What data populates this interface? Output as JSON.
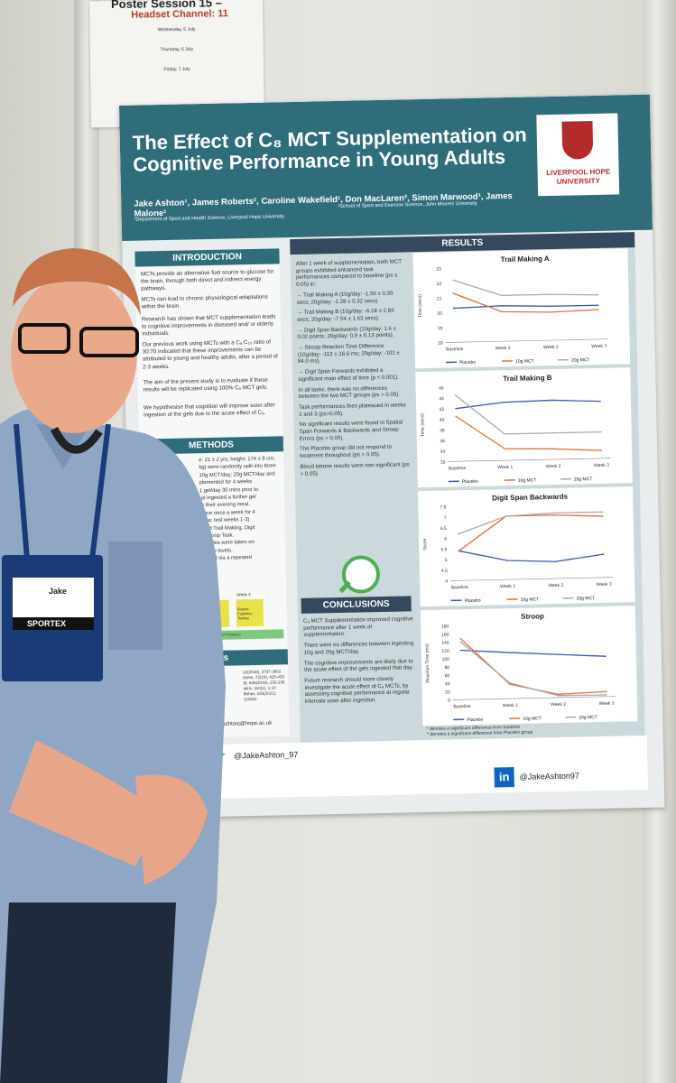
{
  "session_sheet": {
    "title": "Poster Session 15 –",
    "channel": "Headset Channel: 11",
    "days": [
      "Wednesday, 5 July",
      "Thursday, 6 July",
      "Friday, 7 July"
    ]
  },
  "poster": {
    "title_line1": "The Effect of C₈ MCT Supplementation on",
    "title_line2": "Cognitive Performance in Young Adults",
    "authors": "Jake Ashton¹, James Roberts², Caroline Wakefield¹, Don MacLaren², Simon Marwood¹, James Malone¹",
    "affiliation1": "¹Department of Sport and Health Science, Liverpool Hope University",
    "affiliation2": "²School of Sport and Exercise Science, John Moores University",
    "logo_line1": "LIVERPOOL HOPE",
    "logo_line2": "UNIVERSITY",
    "introduction": {
      "heading": "INTRODUCTION",
      "paragraphs": [
        "MCTs provide an alternative fuel source to glucose for the brain, through both direct and indirect energy pathways.",
        "MCTs can lead to chronic physiological adaptations within the brain.",
        "Research has shown that MCT supplementation leads to cognitive improvements in diseased and/ or elderly individuals.",
        "Our previous work using MCTs with a C₈:C₁₀ ratio of 30:70 indicated that these improvements can be attributed to young and healthy adults, after a period of 2-3 weeks.",
        "The aim of the present study is to evaluate if these results will be replicated using 100% C₈ MCT gels.",
        "We hypothesise that cognition will improve soon after ingestion of the gels due to the acute effect of C₈."
      ]
    },
    "methods": {
      "heading": "METHODS",
      "fragments": [
        "e: 21 ± 2 yrs; height: 174 ± 9 cm;",
        "kg) were randomly split into three",
        "10g MCT/day; 20g MCT/day and",
        "plemented for 4 weeks",
        "1 gel/day 30 mins prior to",
        "up ingested a further gel",
        "to their evening meal.",
        "place once a week for 4",
        "eline; test weeks 1-3)",
        "uded Trail Making, Digit",
        "e Stroop Task.",
        "samples were taken on",
        "ketone levels.",
        "formed via a repeated"
      ],
      "table": [
        "Week 2",
        "Week 3",
        "Repeat Cognitive Testing",
        "Repeat Cognitive Testing",
        "ication of MCT/Placebo"
      ]
    },
    "references": {
      "heading": "ences",
      "lines": [
        "22(2016), 3797-3802",
        "ithem, 72(10), 425-433",
        "8), 690(2019), 232-236",
        "iatric, 110(1), 1-10",
        "Behav, 225(2021), 113252"
      ],
      "email": "ashtonj@hope.ac.uk"
    },
    "results": {
      "heading": "RESULTS",
      "paragraphs": [
        "After 1 week of supplementation, both MCT groups exhibited enhanced task performances compared to baseline (ps ≤ 0.05) in:",
        "→ Trail Making A (10g/day: -1.56 ± 0.39 secs; 20g/day: -1.28 ± 0.32 secs)",
        "→ Trail Making B (10g/day: -6.18 ± 2.83 secs; 20g/day: -7.54 ± 1.63 secs).",
        "→ Digit Span Backwards (10g/day: 1.6 ± 0.02 points; 20g/day: 0.9 ± 0.13 points).",
        "→ Stroop Reaction Time Difference (10g/day: -112 ± 16.6 ms; 20g/day: -101 ± 84.0 ms).",
        "→ Digit Span Forwards exhibited a significant main effect of time (p < 0.001).",
        "In all tasks, there was no differences between the two MCT groups (ps > 0.05).",
        "Task performances then plateaued in weeks 2 and 3 (ps>0.05).",
        "No significant results were found in Spatial Span Forwards & Backwards and Stroop Errors (ps > 0.05).",
        "The Placebo group did not respond to treatment throughout (ps > 0.05).",
        "Blood ketone results were non-significant (ps > 0.05)."
      ]
    },
    "conclusions": {
      "heading": "CONCLUSIONS",
      "paragraphs": [
        "C₈ MCT Supplementation improved cognitive performance after 1 week of supplementation.",
        "There were no differences between ingesting 10g and 20g MCT/day.",
        "The cognitive improvements are likely due to the acute effect of the gels ingested that day.",
        "Future research should more closely investigate the acute effect of C₈ MCTs, by assessing cognitive performance at regular intervals soon after ingestion."
      ]
    },
    "footnotes": [
      "* denotes a significant difference from baseline",
      "^ denotes a significant difference from Placebo group"
    ],
    "twitter": "@JakeAshton_97",
    "linkedin": "@JakeAshton97",
    "linkedin_glyph": "in",
    "twitter_glyph": "🐦",
    "badge": {
      "name": "Jake",
      "brand": "SPORTEX"
    }
  },
  "chart_data": [
    {
      "type": "line",
      "title": "Trail Making A",
      "xlabel": "",
      "ylabel": "Time (secs)",
      "categories": [
        "Baseline",
        "Week 1",
        "Week 2",
        "Week 3"
      ],
      "ylim": [
        18,
        23
      ],
      "yticks": [
        18,
        19,
        20,
        21,
        22,
        23
      ],
      "series": [
        {
          "name": "Placebo",
          "color": "#3b5ba5",
          "values": [
            20.3,
            20.4,
            20.3,
            20.3
          ]
        },
        {
          "name": "10g MCT",
          "color": "#d9733b",
          "values": [
            21.3,
            20.0,
            19.9,
            20.0
          ]
        },
        {
          "name": "20g MCT",
          "color": "#a9a9a9",
          "values": [
            22.2,
            21.1,
            21.1,
            21.0
          ]
        }
      ]
    },
    {
      "type": "line",
      "title": "Trail Making B",
      "xlabel": "",
      "ylabel": "Time (secs)",
      "categories": [
        "Baseline",
        "Week 1",
        "Week 2",
        "Week 3"
      ],
      "ylim": [
        32,
        46
      ],
      "yticks": [
        32,
        34,
        36,
        38,
        40,
        42,
        44,
        46
      ],
      "series": [
        {
          "name": "Placebo",
          "color": "#3b5ba5",
          "values": [
            42.0,
            43.0,
            43.2,
            42.8
          ]
        },
        {
          "name": "10g MCT",
          "color": "#d9733b",
          "values": [
            40.5,
            34.2,
            34.0,
            33.5
          ]
        },
        {
          "name": "20g MCT",
          "color": "#a9a9a9",
          "values": [
            44.5,
            37.0,
            37.0,
            37.0
          ]
        }
      ]
    },
    {
      "type": "line",
      "title": "Digit Span Backwards",
      "xlabel": "",
      "ylabel": "Score",
      "categories": [
        "Baseline",
        "Week 1",
        "Week 2",
        "Week 3"
      ],
      "ylim": [
        4,
        7.5
      ],
      "yticks": [
        4,
        4.5,
        5,
        5.5,
        6,
        6.5,
        7,
        7.5
      ],
      "series": [
        {
          "name": "Placebo",
          "color": "#3b5ba5",
          "values": [
            5.4,
            4.9,
            4.8,
            5.1
          ]
        },
        {
          "name": "10g MCT",
          "color": "#d9733b",
          "values": [
            5.4,
            7.0,
            7.0,
            6.9
          ]
        },
        {
          "name": "20g MCT",
          "color": "#a9a9a9",
          "values": [
            6.2,
            7.0,
            7.1,
            7.1
          ]
        }
      ]
    },
    {
      "type": "line",
      "title": "Stroop",
      "xlabel": "",
      "ylabel": "Reaction Time (ms)",
      "categories": [
        "Baseline",
        "Week 1",
        "Week 2",
        "Week 3"
      ],
      "ylim": [
        0,
        180
      ],
      "yticks": [
        0,
        20,
        40,
        60,
        80,
        100,
        120,
        140,
        160,
        180
      ],
      "series": [
        {
          "name": "Placebo",
          "color": "#3b5ba5",
          "values": [
            120,
            112,
            105,
            98
          ]
        },
        {
          "name": "10g MCT",
          "color": "#d9733b",
          "values": [
            148,
            35,
            8,
            12
          ]
        },
        {
          "name": "20g MCT",
          "color": "#a9a9a9",
          "values": [
            140,
            38,
            5,
            4
          ]
        }
      ]
    }
  ],
  "colors": {
    "poster_header": "#2f6d7b",
    "results_header": "#34495e",
    "accent_red": "#c0392b"
  }
}
